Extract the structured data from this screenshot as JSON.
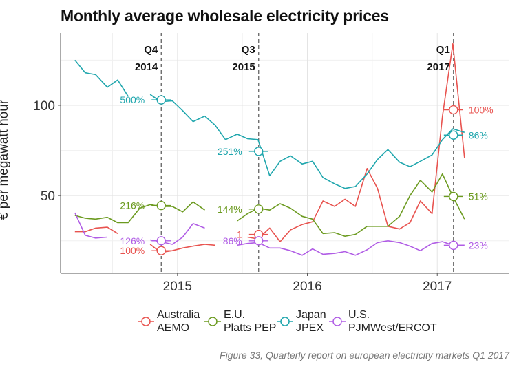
{
  "chart_data": {
    "type": "line",
    "title": "Monthly average wholesale electricity prices",
    "ylabel": "€ per megawatt hour",
    "xlabel": "",
    "x_ticks": [
      "2015",
      "2016",
      "2017"
    ],
    "y_ticks": [
      50,
      100
    ],
    "xlim": [
      2014.1,
      2017.55
    ],
    "ylim": [
      7,
      140
    ],
    "grid": true,
    "legend_position": "bottom",
    "caption": "Figure 33, Quarterly report on european electricity markets Q1 2017",
    "quarter_markers": [
      {
        "x": 2014.875,
        "line1": "Q4",
        "line2": "2014"
      },
      {
        "x": 2015.625,
        "line1": "Q3",
        "line2": "2015"
      },
      {
        "x": 2017.125,
        "line1": "Q1",
        "line2": "2017"
      }
    ],
    "series": [
      {
        "name": "Australia AEMO",
        "legend_line1": "Australia",
        "legend_line2": "AEMO",
        "color": "#e8534f",
        "points": [
          [
            2014.21,
            30
          ],
          [
            2014.29,
            30
          ],
          [
            2014.37,
            32
          ],
          [
            2014.46,
            32.5
          ],
          [
            2014.54,
            29
          ],
          null,
          [
            2014.79,
            23
          ],
          [
            2014.87,
            18.5
          ],
          [
            2014.96,
            19.5
          ],
          [
            2015.04,
            21
          ],
          [
            2015.12,
            22
          ],
          [
            2015.21,
            23
          ],
          [
            2015.29,
            22.5
          ],
          null,
          [
            2015.54,
            27
          ],
          [
            2015.62,
            26
          ],
          [
            2015.71,
            32
          ],
          [
            2015.79,
            24.5
          ],
          [
            2015.87,
            31
          ],
          [
            2015.96,
            34
          ],
          [
            2016.04,
            35.5
          ],
          [
            2016.12,
            47
          ],
          [
            2016.21,
            44
          ],
          [
            2016.29,
            48
          ],
          [
            2016.37,
            44
          ],
          [
            2016.46,
            65
          ],
          [
            2016.54,
            54
          ],
          [
            2016.62,
            33
          ],
          [
            2016.71,
            31.5
          ],
          [
            2016.79,
            35
          ],
          [
            2016.87,
            47
          ],
          [
            2016.96,
            40
          ],
          [
            2017.04,
            94
          ],
          [
            2017.12,
            134
          ],
          [
            2017.21,
            71
          ]
        ],
        "markers": [
          {
            "x": 2014.875,
            "y": 19.5,
            "label": "100%"
          },
          {
            "x": 2015.625,
            "y": 28.5,
            "label": "1"
          },
          {
            "x": 2017.125,
            "y": 97.5,
            "label": "100%"
          }
        ]
      },
      {
        "name": "E.U. Platts PEP",
        "legend_line1": "E.U.",
        "legend_line2": "Platts PEP",
        "color": "#6b9a1f",
        "points": [
          [
            2014.21,
            39
          ],
          [
            2014.29,
            37.5
          ],
          [
            2014.37,
            37
          ],
          [
            2014.46,
            38
          ],
          [
            2014.54,
            35
          ],
          [
            2014.62,
            35
          ],
          [
            2014.71,
            43
          ],
          [
            2014.79,
            45
          ],
          [
            2014.87,
            44
          ],
          [
            2014.96,
            44
          ],
          [
            2015.04,
            41
          ],
          [
            2015.12,
            46.5
          ],
          [
            2015.21,
            42
          ],
          null,
          [
            2015.46,
            36
          ],
          [
            2015.54,
            40
          ],
          [
            2015.62,
            43
          ],
          [
            2015.71,
            42
          ],
          [
            2015.79,
            45.5
          ],
          [
            2015.87,
            43
          ],
          [
            2015.96,
            38.5
          ],
          [
            2016.04,
            37
          ],
          [
            2016.12,
            29
          ],
          [
            2016.21,
            29.5
          ],
          [
            2016.29,
            27.5
          ],
          [
            2016.37,
            28.5
          ],
          [
            2016.46,
            33
          ],
          [
            2016.54,
            33
          ],
          [
            2016.62,
            33
          ],
          [
            2016.71,
            38.5
          ],
          [
            2016.79,
            50
          ],
          [
            2016.87,
            58.5
          ],
          [
            2016.96,
            52
          ],
          [
            2017.04,
            62
          ],
          [
            2017.12,
            49.5
          ],
          [
            2017.21,
            37
          ]
        ],
        "markers": [
          {
            "x": 2014.875,
            "y": 44.5,
            "label": "216%"
          },
          {
            "x": 2015.625,
            "y": 42.5,
            "label": "144%"
          },
          {
            "x": 2017.125,
            "y": 49.5,
            "label": "51%"
          }
        ]
      },
      {
        "name": "Japan JPEX",
        "legend_line1": "Japan",
        "legend_line2": "JPEX",
        "color": "#1fa6ad",
        "points": [
          [
            2014.21,
            125
          ],
          [
            2014.29,
            118
          ],
          [
            2014.37,
            117
          ],
          [
            2014.46,
            110
          ],
          [
            2014.54,
            114
          ],
          [
            2014.62,
            105
          ],
          null,
          [
            2014.79,
            106
          ],
          [
            2014.87,
            102
          ],
          [
            2014.96,
            102.5
          ],
          [
            2015.04,
            97
          ],
          [
            2015.12,
            91
          ],
          [
            2015.21,
            94
          ],
          [
            2015.29,
            89
          ],
          [
            2015.37,
            81
          ],
          [
            2015.46,
            84
          ],
          [
            2015.54,
            81.5
          ],
          [
            2015.62,
            81
          ],
          [
            2015.71,
            61
          ],
          [
            2015.79,
            69
          ],
          [
            2015.87,
            72
          ],
          [
            2015.96,
            67.5
          ],
          [
            2016.04,
            69
          ],
          [
            2016.12,
            60
          ],
          [
            2016.21,
            56.5
          ],
          [
            2016.29,
            54
          ],
          [
            2016.37,
            55
          ],
          [
            2016.46,
            62
          ],
          [
            2016.54,
            70
          ],
          [
            2016.62,
            75.5
          ],
          [
            2016.71,
            68.5
          ],
          [
            2016.79,
            66
          ],
          [
            2016.87,
            69
          ],
          [
            2016.96,
            72.5
          ],
          [
            2017.04,
            81
          ],
          [
            2017.12,
            87
          ],
          [
            2017.21,
            85
          ]
        ],
        "markers": [
          {
            "x": 2014.875,
            "y": 103,
            "label": "500%"
          },
          {
            "x": 2015.625,
            "y": 74.5,
            "label": "251%"
          },
          {
            "x": 2017.125,
            "y": 83.5,
            "label": "86%"
          }
        ]
      },
      {
        "name": "U.S. PJMWest/ERCOT",
        "legend_line1": "U.S.",
        "legend_line2": "PJMWest/ERCOT",
        "color": "#b05ce5",
        "points": [
          [
            2014.21,
            40.5
          ],
          [
            2014.29,
            28
          ],
          [
            2014.37,
            26.5
          ],
          [
            2014.46,
            27
          ],
          null,
          [
            2014.79,
            25.5
          ],
          [
            2014.87,
            24.5
          ],
          [
            2014.96,
            23
          ],
          [
            2015.04,
            27
          ],
          [
            2015.12,
            34.5
          ],
          [
            2015.21,
            32
          ],
          null,
          [
            2015.46,
            22.5
          ],
          [
            2015.54,
            23.5
          ],
          [
            2015.62,
            24
          ],
          [
            2015.71,
            21
          ],
          [
            2015.79,
            21
          ],
          [
            2015.87,
            19.5
          ],
          [
            2015.96,
            17
          ],
          [
            2016.04,
            20.5
          ],
          [
            2016.12,
            17.5
          ],
          [
            2016.21,
            18
          ],
          [
            2016.29,
            19
          ],
          [
            2016.37,
            17
          ],
          [
            2016.46,
            20
          ],
          [
            2016.54,
            24
          ],
          [
            2016.62,
            25
          ],
          [
            2016.71,
            24
          ],
          [
            2016.79,
            22
          ],
          [
            2016.87,
            19.5
          ],
          [
            2016.96,
            23.5
          ],
          [
            2017.04,
            24.5
          ],
          [
            2017.12,
            22.5
          ],
          [
            2017.21,
            22.5
          ]
        ],
        "markers": [
          {
            "x": 2014.875,
            "y": 25,
            "label": "126%"
          },
          {
            "x": 2015.625,
            "y": 25,
            "label": "86%"
          },
          {
            "x": 2017.125,
            "y": 22.5,
            "label": "23%"
          }
        ]
      }
    ]
  }
}
